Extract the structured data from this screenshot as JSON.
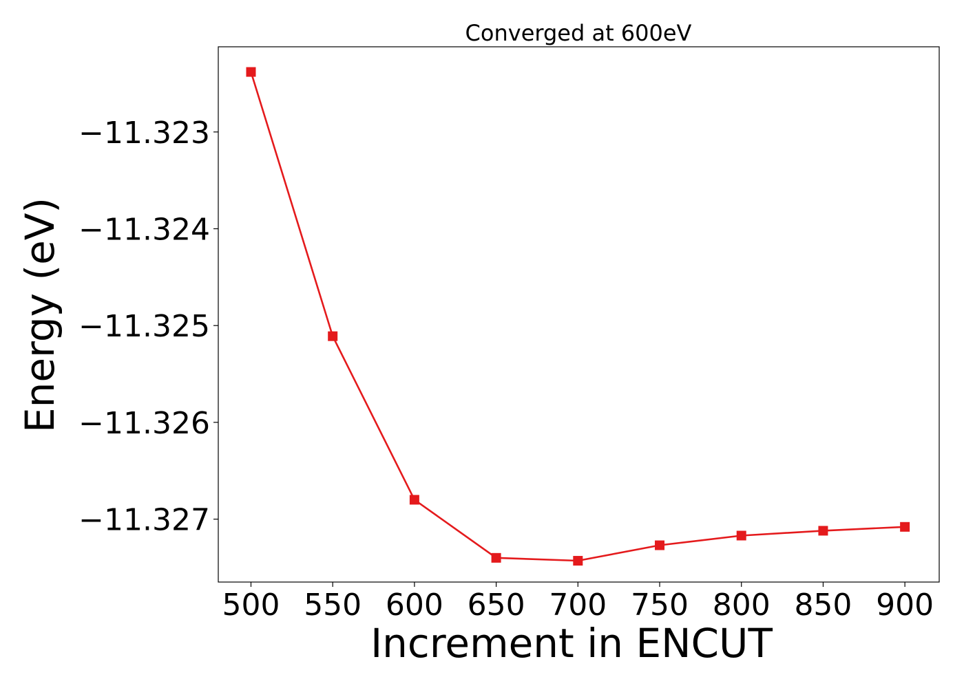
{
  "chart_data": {
    "type": "line",
    "title": "Converged at 600eV",
    "xlabel": "Increment in ENCUT",
    "ylabel": "Energy (eV)",
    "x": [
      500,
      550,
      600,
      650,
      700,
      750,
      800,
      850,
      900
    ],
    "series": [
      {
        "values": [
          -11.32238,
          -11.32511,
          -11.3268,
          -11.3274,
          -11.32743,
          -11.32727,
          -11.32717,
          -11.32712,
          -11.32708
        ],
        "color": "#e41a1c",
        "marker": "square"
      }
    ],
    "xticks": [
      500,
      550,
      600,
      650,
      700,
      750,
      800,
      850,
      900
    ],
    "xtick_labels": [
      "500",
      "550",
      "600",
      "650",
      "700",
      "750",
      "800",
      "850",
      "900"
    ],
    "yticks": [
      -11.323,
      -11.324,
      -11.325,
      -11.326,
      -11.327
    ],
    "ytick_labels": [
      "−11.323",
      "−11.324",
      "−11.325",
      "−11.326",
      "−11.327"
    ],
    "xlim": [
      480,
      921
    ],
    "ylim": [
      -11.32765,
      -11.32212
    ],
    "grid": false,
    "legend": "none"
  }
}
